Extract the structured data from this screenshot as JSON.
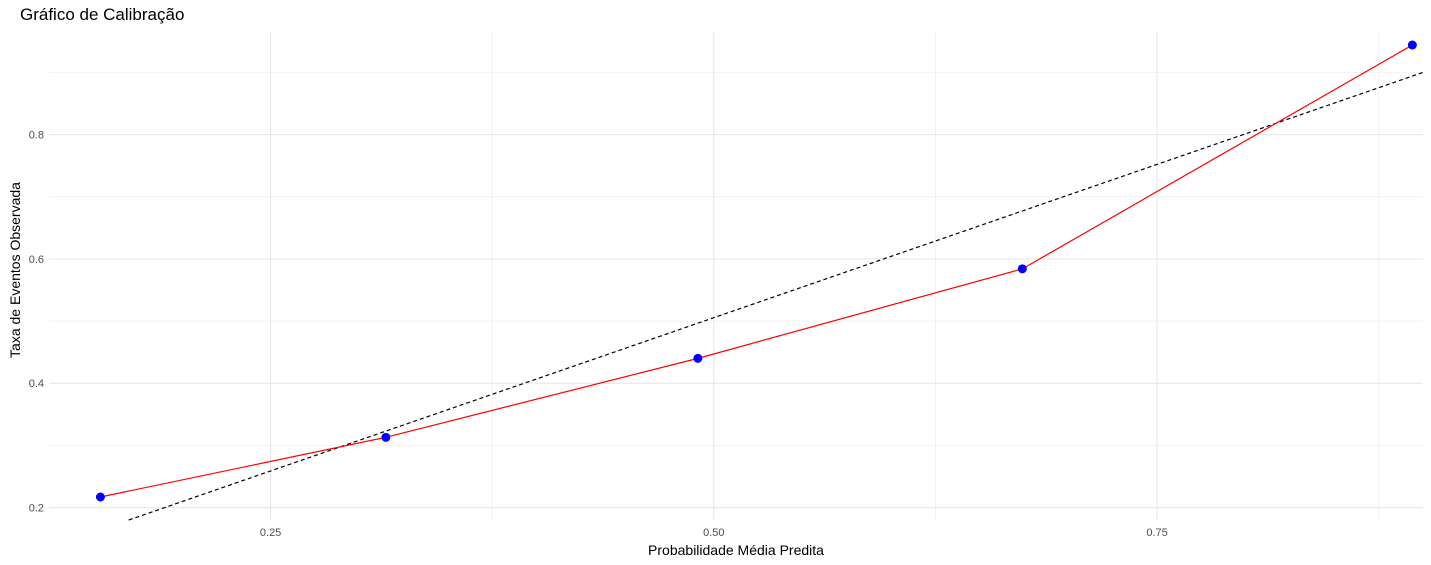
{
  "chart_data": {
    "type": "line",
    "title": "Gráfico de Calibração",
    "xlabel": "Probabilidade Média Predita",
    "ylabel": "Taxa de Eventos Observada",
    "xlim": [
      0.125,
      0.9
    ],
    "ylim": [
      0.18,
      0.965
    ],
    "x_ticks": [
      0.25,
      0.5,
      0.75
    ],
    "x_tick_labels": [
      "0.25",
      "0.50",
      "0.75"
    ],
    "y_ticks": [
      0.2,
      0.4,
      0.6,
      0.8
    ],
    "y_tick_labels": [
      "0.2",
      "0.4",
      "0.6",
      "0.8"
    ],
    "x_minor_grid": [
      0.375,
      0.625,
      0.875
    ],
    "y_minor_grid": [
      0.3,
      0.5,
      0.7,
      0.9
    ],
    "grid": true,
    "legend": "none",
    "series": [
      {
        "x": [
          0.154,
          0.315,
          0.491,
          0.674,
          0.894
        ],
        "y": [
          0.217,
          0.313,
          0.44,
          0.584,
          0.944
        ],
        "line_color": "#ff0000",
        "point_color": "#0000ff"
      }
    ],
    "reference_line": {
      "description": "",
      "x": [
        0.17,
        0.9
      ],
      "y": [
        0.18,
        0.9
      ],
      "color": "#000000",
      "style": "dashed"
    }
  }
}
